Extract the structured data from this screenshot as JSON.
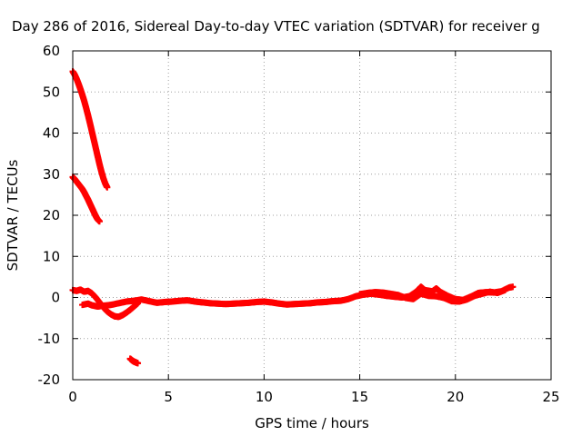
{
  "chart_data": {
    "type": "scatter",
    "title": "Day 286 of 2016, Sidereal Day-to-day VTEC variation (SDTVAR) for receiver g",
    "xlabel": "GPS time / hours",
    "ylabel": "SDTVAR / TECUs",
    "xlim": [
      0,
      25
    ],
    "ylim": [
      -20,
      60
    ],
    "xticks": [
      0,
      5,
      10,
      15,
      20,
      25
    ],
    "yticks": [
      -20,
      -10,
      0,
      10,
      20,
      30,
      40,
      50,
      60
    ],
    "grid": true,
    "legend": "none",
    "marker_color": "#ff0000",
    "series": [
      {
        "values": [
          [
            0.0,
            55.0
          ],
          [
            0.1,
            54.2
          ],
          [
            0.2,
            53.2
          ],
          [
            0.3,
            52.0
          ],
          [
            0.4,
            50.7
          ],
          [
            0.5,
            49.3
          ],
          [
            0.6,
            47.8
          ],
          [
            0.7,
            46.1
          ],
          [
            0.8,
            44.3
          ],
          [
            0.9,
            42.4
          ],
          [
            1.0,
            40.4
          ],
          [
            1.1,
            38.4
          ],
          [
            1.2,
            36.4
          ],
          [
            1.3,
            34.4
          ],
          [
            1.4,
            32.4
          ],
          [
            1.5,
            30.6
          ],
          [
            1.6,
            29.0
          ],
          [
            1.7,
            27.7
          ],
          [
            1.8,
            26.8
          ]
        ]
      },
      {
        "values": [
          [
            0.0,
            29.3
          ],
          [
            0.1,
            28.8
          ],
          [
            0.2,
            28.2
          ],
          [
            0.3,
            27.6
          ],
          [
            0.4,
            27.0
          ],
          [
            0.5,
            26.4
          ],
          [
            0.6,
            25.6
          ],
          [
            0.7,
            24.7
          ],
          [
            0.8,
            23.8
          ],
          [
            0.9,
            22.8
          ],
          [
            1.0,
            21.8
          ],
          [
            1.1,
            20.8
          ],
          [
            1.2,
            19.8
          ],
          [
            1.3,
            19.0
          ],
          [
            1.4,
            18.5
          ]
        ]
      },
      {
        "values": [
          [
            3.0,
            -14.9
          ],
          [
            3.1,
            -15.3
          ],
          [
            3.2,
            -15.6
          ],
          [
            3.3,
            -15.8
          ],
          [
            3.4,
            -16.0
          ]
        ]
      },
      {
        "values": [
          [
            0.0,
            1.8
          ],
          [
            0.2,
            1.6
          ],
          [
            0.4,
            1.9
          ],
          [
            0.6,
            1.4
          ],
          [
            0.8,
            1.6
          ],
          [
            1.0,
            1.0
          ],
          [
            1.2,
            0.0
          ],
          [
            1.4,
            -1.2
          ],
          [
            1.6,
            -2.4
          ],
          [
            1.8,
            -3.4
          ],
          [
            2.0,
            -4.1
          ],
          [
            2.2,
            -4.6
          ],
          [
            2.4,
            -4.7
          ],
          [
            2.6,
            -4.3
          ],
          [
            2.8,
            -3.7
          ],
          [
            3.0,
            -3.0
          ],
          [
            3.2,
            -2.2
          ],
          [
            3.4,
            -1.4
          ]
        ]
      },
      {
        "values": [
          [
            0.5,
            -1.8
          ],
          [
            0.8,
            -1.5
          ],
          [
            1.0,
            -1.9
          ],
          [
            1.3,
            -2.2
          ],
          [
            1.6,
            -2.0
          ],
          [
            2.0,
            -1.8
          ],
          [
            2.4,
            -1.4
          ],
          [
            2.8,
            -1.0
          ],
          [
            3.2,
            -0.8
          ],
          [
            3.6,
            -0.5
          ],
          [
            4.0,
            -0.9
          ],
          [
            4.4,
            -1.3
          ],
          [
            4.8,
            -1.1
          ],
          [
            5.2,
            -1.0
          ],
          [
            5.6,
            -0.8
          ],
          [
            6.0,
            -0.7
          ],
          [
            6.4,
            -1.0
          ],
          [
            6.8,
            -1.2
          ],
          [
            7.2,
            -1.4
          ],
          [
            7.6,
            -1.5
          ],
          [
            8.0,
            -1.6
          ],
          [
            8.4,
            -1.5
          ],
          [
            8.8,
            -1.4
          ],
          [
            9.2,
            -1.3
          ],
          [
            9.6,
            -1.1
          ],
          [
            10.0,
            -1.0
          ],
          [
            10.4,
            -1.2
          ],
          [
            10.8,
            -1.5
          ],
          [
            11.2,
            -1.7
          ],
          [
            11.6,
            -1.6
          ],
          [
            12.0,
            -1.5
          ],
          [
            12.4,
            -1.4
          ],
          [
            12.8,
            -1.2
          ],
          [
            13.2,
            -1.1
          ],
          [
            13.6,
            -0.9
          ],
          [
            14.0,
            -0.8
          ],
          [
            14.4,
            -0.4
          ],
          [
            14.8,
            0.3
          ],
          [
            15.2,
            0.7
          ],
          [
            15.6,
            0.9
          ],
          [
            16.0,
            0.7
          ],
          [
            16.4,
            0.4
          ],
          [
            16.8,
            0.2
          ],
          [
            17.2,
            0.0
          ],
          [
            17.6,
            0.3
          ],
          [
            18.0,
            1.6
          ],
          [
            18.2,
            2.6
          ],
          [
            18.4,
            1.8
          ],
          [
            18.8,
            1.5
          ],
          [
            19.0,
            2.2
          ],
          [
            19.2,
            1.4
          ],
          [
            19.6,
            0.4
          ],
          [
            20.0,
            -0.4
          ],
          [
            20.4,
            -0.6
          ],
          [
            20.8,
            0.2
          ],
          [
            21.2,
            1.1
          ],
          [
            21.6,
            1.3
          ],
          [
            22.0,
            1.2
          ],
          [
            22.4,
            1.5
          ],
          [
            22.8,
            2.4
          ],
          [
            23.0,
            2.6
          ]
        ]
      },
      {
        "values": [
          [
            15.0,
            0.8
          ],
          [
            15.4,
            1.1
          ],
          [
            15.8,
            1.3
          ],
          [
            16.2,
            1.2
          ],
          [
            16.6,
            0.9
          ],
          [
            17.0,
            0.6
          ],
          [
            17.4,
            -0.1
          ],
          [
            17.8,
            -0.4
          ],
          [
            18.2,
            0.9
          ],
          [
            18.6,
            0.4
          ],
          [
            19.0,
            0.3
          ],
          [
            19.4,
            -0.1
          ],
          [
            19.8,
            -0.9
          ],
          [
            20.2,
            -1.0
          ],
          [
            20.6,
            -0.5
          ],
          [
            21.0,
            0.4
          ],
          [
            21.4,
            0.9
          ],
          [
            21.8,
            1.4
          ],
          [
            22.2,
            1.1
          ],
          [
            22.6,
            1.8
          ]
        ]
      }
    ]
  }
}
